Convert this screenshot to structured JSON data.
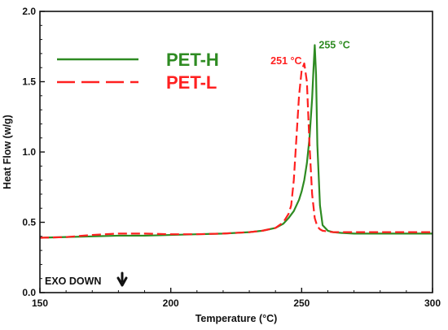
{
  "chart_data": {
    "type": "line",
    "title": "",
    "xlabel": "Temperature (°C)",
    "ylabel": "Heat Flow (w/g)",
    "xlim": [
      150,
      300
    ],
    "ylim": [
      0.0,
      2.0
    ],
    "xticks": [
      150,
      200,
      250,
      300
    ],
    "yticks": [
      0.0,
      0.5,
      1.0,
      1.5,
      2.0
    ],
    "xtick_labels": [
      "150",
      "200",
      "250",
      "300"
    ],
    "ytick_labels": [
      "0.0",
      "0.5",
      "1.0",
      "1.5",
      "2.0"
    ],
    "grid": false,
    "legend_position": "top-left",
    "series": [
      {
        "name": "PET-H",
        "color": "#2e8b22",
        "dash": "solid",
        "x": [
          150,
          160,
          170,
          180,
          190,
          200,
          210,
          220,
          230,
          235,
          240,
          243,
          245,
          247,
          249,
          250,
          251,
          252,
          253,
          254,
          254.5,
          255,
          255.5,
          256,
          257,
          258,
          260,
          262,
          265,
          270,
          280,
          290,
          300
        ],
        "y": [
          0.39,
          0.395,
          0.4,
          0.405,
          0.405,
          0.41,
          0.415,
          0.42,
          0.43,
          0.44,
          0.46,
          0.49,
          0.53,
          0.58,
          0.66,
          0.72,
          0.8,
          0.92,
          1.1,
          1.38,
          1.58,
          1.76,
          1.55,
          1.05,
          0.62,
          0.48,
          0.44,
          0.43,
          0.425,
          0.42,
          0.42,
          0.42,
          0.42
        ]
      },
      {
        "name": "PET-L",
        "color": "#ff2020",
        "dash": "dashed",
        "x": [
          150,
          160,
          170,
          180,
          190,
          200,
          210,
          220,
          230,
          235,
          240,
          243,
          245,
          246,
          247,
          248,
          249,
          250,
          251,
          252,
          253,
          254,
          255,
          256,
          257,
          258,
          260,
          262,
          265,
          270,
          280,
          290,
          300
        ],
        "y": [
          0.39,
          0.395,
          0.41,
          0.42,
          0.42,
          0.415,
          0.415,
          0.42,
          0.43,
          0.44,
          0.46,
          0.5,
          0.56,
          0.62,
          0.8,
          1.1,
          1.4,
          1.58,
          1.63,
          1.5,
          1.05,
          0.7,
          0.53,
          0.47,
          0.45,
          0.44,
          0.435,
          0.43,
          0.43,
          0.43,
          0.43,
          0.43,
          0.43
        ]
      }
    ],
    "annotations": [
      {
        "text": "255 °C",
        "x": 255,
        "y": 1.76,
        "color": "#2e8b22",
        "align": "start"
      },
      {
        "text": "251 °C",
        "x": 251,
        "y": 1.63,
        "color": "#ff2020",
        "align": "end"
      },
      {
        "text": "EXO DOWN",
        "symbol": "down-arrow"
      }
    ]
  }
}
